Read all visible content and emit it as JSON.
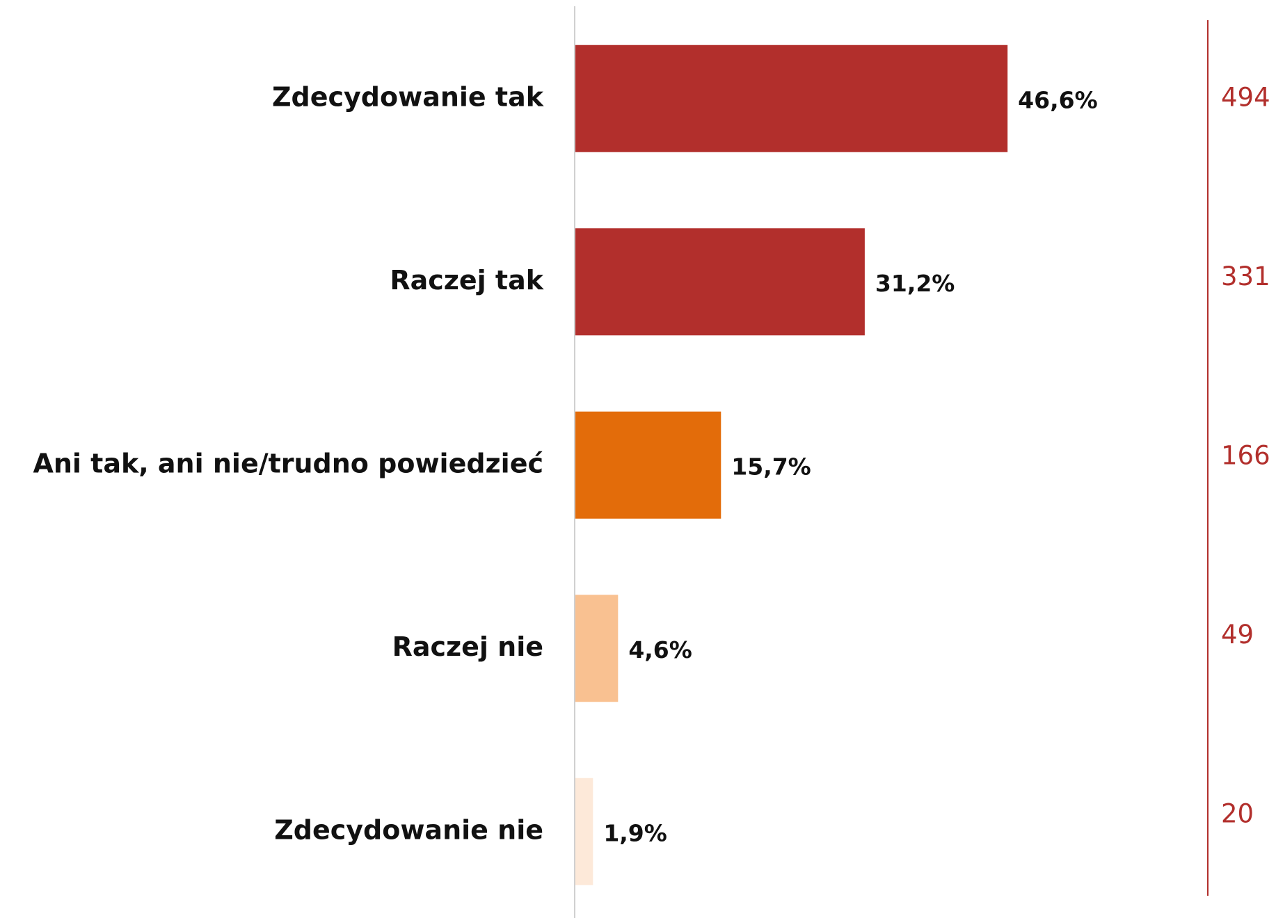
{
  "chart_data": {
    "type": "bar",
    "orientation": "horizontal",
    "categories": [
      "Zdecydowanie tak",
      "Raczej tak",
      "Ani tak, ani nie/trudno powiedzieć",
      "Raczej nie",
      "Zdecydowanie nie"
    ],
    "values": [
      46.6,
      31.2,
      15.7,
      4.6,
      1.9
    ],
    "value_labels": [
      "46,6%",
      "31,2%",
      "15,7%",
      "4,6%",
      "1,9%"
    ],
    "colors": [
      "#b22f2c",
      "#b22f2c",
      "#e36c0a",
      "#f9c191",
      "#fde9d9"
    ],
    "counts": [
      494,
      331,
      166,
      49,
      20
    ],
    "counts_color": "#b22f2c"
  }
}
